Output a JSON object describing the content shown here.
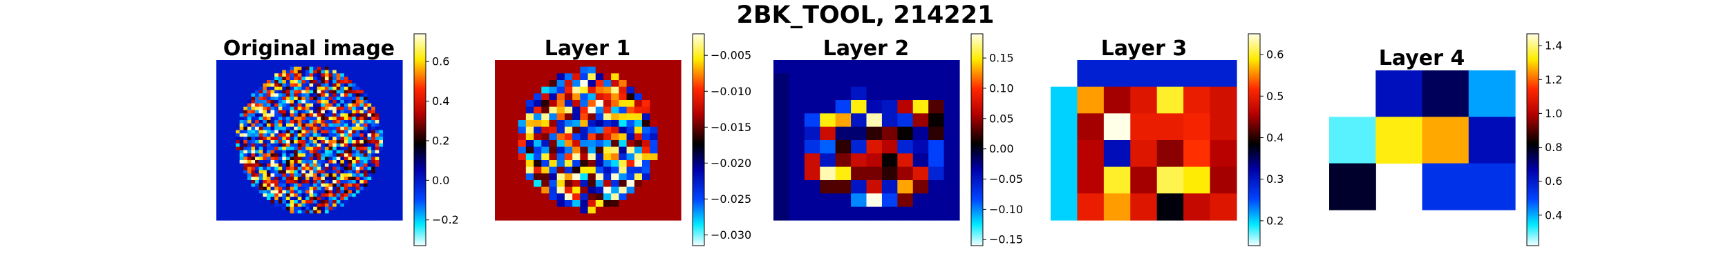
{
  "figure": {
    "suptitle": "2BK_TOOL, 214221"
  },
  "chart_data": [
    {
      "type": "heatmap",
      "title": "Original image",
      "colormap": "jet-like (cyan-blue-black-red-yellow-white)",
      "vmin": -0.33,
      "vmax": 0.74,
      "colorbar_ticks": [
        -0.2,
        0.0,
        0.2,
        0.4,
        0.6
      ],
      "colorbar_tick_labels": [
        "−0.2",
        "0.0",
        "0.2",
        "0.4",
        "0.6"
      ],
      "grid_size": [
        48,
        48
      ],
      "background_value": 0.0,
      "note": "noisy brain-shaped texture, individual voxel values not legible"
    },
    {
      "type": "heatmap",
      "title": "Layer 1",
      "colormap": "jet-like (cyan-blue-black-red-yellow-white)",
      "vmin": -0.0315,
      "vmax": -0.002,
      "colorbar_ticks": [
        -0.03,
        -0.025,
        -0.02,
        -0.015,
        -0.01,
        -0.005
      ],
      "colorbar_tick_labels": [
        "−0.030",
        "−0.025",
        "−0.020",
        "−0.015",
        "−0.010",
        "−0.005"
      ],
      "grid_size": [
        24,
        24
      ],
      "background_value": -0.0135,
      "note": "brain-shaped activation, individual values not legible"
    },
    {
      "type": "heatmap",
      "title": "Layer 2",
      "colormap": "jet-like (cyan-blue-black-red-yellow-white)",
      "vmin": -0.16,
      "vmax": 0.19,
      "colorbar_ticks": [
        -0.15,
        -0.1,
        -0.05,
        0.0,
        0.05,
        0.1,
        0.15
      ],
      "colorbar_tick_labels": [
        "−0.15",
        "−0.10",
        "−0.05",
        "0.00",
        "0.05",
        "0.10",
        "0.15"
      ],
      "grid_size": [
        12,
        12
      ],
      "rows": [
        [
          -0.03,
          -0.03,
          -0.03,
          -0.03,
          -0.03,
          -0.03,
          -0.03,
          -0.03,
          -0.03,
          -0.03,
          -0.03,
          -0.03
        ],
        [
          -0.02,
          -0.03,
          -0.03,
          -0.03,
          -0.03,
          -0.03,
          -0.03,
          -0.03,
          -0.03,
          -0.03,
          -0.03,
          -0.03
        ],
        [
          -0.02,
          -0.03,
          -0.03,
          -0.03,
          -0.03,
          -0.05,
          -0.03,
          -0.03,
          -0.03,
          -0.03,
          -0.03,
          -0.03
        ],
        [
          -0.02,
          -0.03,
          -0.03,
          -0.03,
          -0.08,
          0.15,
          -0.04,
          -0.05,
          0.06,
          0.15,
          0.03,
          -0.03
        ],
        [
          -0.02,
          -0.03,
          -0.08,
          0.15,
          0.13,
          -0.05,
          0.18,
          -0.05,
          -0.07,
          0.05,
          0.01,
          -0.03
        ],
        [
          -0.02,
          -0.03,
          -0.05,
          0.07,
          -0.02,
          -0.02,
          0.02,
          0.04,
          0.01,
          -0.03,
          0.02,
          -0.03
        ],
        [
          -0.02,
          -0.03,
          -0.07,
          -0.09,
          0.02,
          -0.06,
          0.08,
          0.06,
          -0.06,
          -0.04,
          -0.08,
          -0.03
        ],
        [
          -0.02,
          -0.03,
          0.07,
          -0.05,
          0.04,
          0.07,
          0.06,
          0.01,
          0.08,
          -0.03,
          -0.08,
          -0.03
        ],
        [
          -0.02,
          -0.03,
          0.07,
          0.18,
          0.15,
          0.04,
          0.04,
          0.02,
          0.05,
          0.08,
          -0.06,
          -0.03
        ],
        [
          -0.02,
          -0.03,
          -0.03,
          0.03,
          0.03,
          -0.05,
          0.07,
          -0.05,
          0.13,
          0.04,
          -0.03,
          -0.03
        ],
        [
          -0.02,
          -0.03,
          -0.03,
          -0.03,
          -0.03,
          -0.1,
          0.19,
          -0.08,
          0.04,
          -0.03,
          -0.03,
          -0.03
        ],
        [
          -0.02,
          -0.03,
          -0.03,
          -0.03,
          -0.03,
          -0.03,
          -0.03,
          -0.03,
          -0.03,
          -0.03,
          -0.03,
          -0.03
        ]
      ]
    },
    {
      "type": "heatmap",
      "title": "Layer 3",
      "colormap": "jet-like (cyan-blue-black-red-yellow-white)",
      "vmin": 0.14,
      "vmax": 0.65,
      "colorbar_ticks": [
        0.2,
        0.3,
        0.4,
        0.5,
        0.6
      ],
      "colorbar_tick_labels": [
        "0.2",
        "0.3",
        "0.4",
        "0.5",
        "0.6"
      ],
      "grid_size": [
        6,
        7
      ],
      "rows": [
        [
          null,
          0.29,
          0.29,
          0.29,
          0.29,
          0.29,
          0.29
        ],
        [
          0.2,
          0.56,
          0.45,
          0.49,
          0.6,
          0.5,
          0.48
        ],
        [
          0.2,
          0.45,
          0.66,
          0.5,
          0.5,
          0.51,
          0.48
        ],
        [
          0.2,
          0.46,
          0.31,
          0.49,
          0.44,
          0.52,
          0.46
        ],
        [
          0.2,
          0.46,
          0.6,
          0.45,
          0.61,
          0.59,
          0.45
        ],
        [
          0.2,
          0.5,
          0.56,
          0.49,
          0.38,
          0.47,
          0.49
        ]
      ]
    },
    {
      "type": "heatmap",
      "title": "Layer 4",
      "colormap": "jet-like (cyan-blue-black-red-yellow-white)",
      "vmin": 0.22,
      "vmax": 1.47,
      "colorbar_ticks": [
        0.4,
        0.6,
        0.8,
        1.0,
        1.2,
        1.4
      ],
      "colorbar_tick_labels": [
        "0.4",
        "0.6",
        "0.8",
        "1.0",
        "1.2",
        "1.4"
      ],
      "grid_size": [
        3,
        4
      ],
      "rows": [
        [
          null,
          0.63,
          0.74,
          0.41
        ],
        [
          0.3,
          1.33,
          1.26,
          0.64
        ],
        [
          0.78,
          null,
          0.54,
          0.54
        ]
      ]
    }
  ]
}
